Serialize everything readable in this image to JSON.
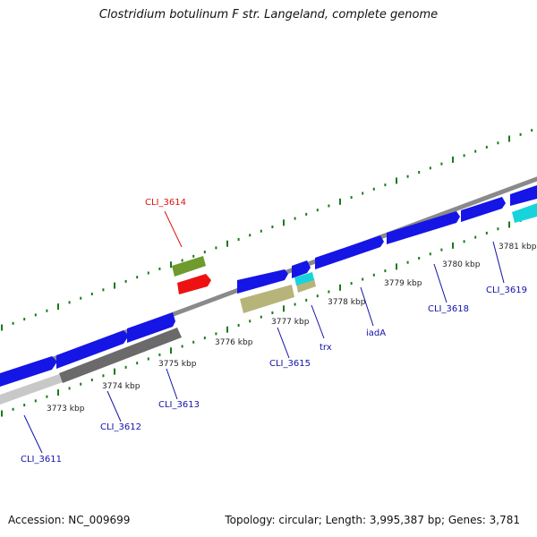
{
  "title": "Clostridium botulinum F str. Langeland, complete genome",
  "footer": {
    "accession": "Accession: NC_009699",
    "summary": "Topology: circular; Length: 3,995,387 bp; Genes: 3,781"
  },
  "colors": {
    "backbone": "#8a8a8a",
    "ticks": "#1a7a1a",
    "forward_cds": "#1515e6",
    "gray_gene_dark": "#6a6a6a",
    "gray_gene_light": "#c8c8c8",
    "olive_gene": "#b7b47a",
    "cyan_gene": "#17d4dc",
    "green_gene": "#6e9a2e",
    "red_gene": "#ee1111",
    "label_blue": "#1111aa",
    "label_red": "#dd1111"
  },
  "scale": {
    "labels": [
      "3773 kbp",
      "3774 kbp",
      "3775 kbp",
      "3776 kbp",
      "3777 kbp",
      "3778 kbp",
      "3779 kbp",
      "3780 kbp",
      "3781 kbp"
    ]
  },
  "gene_labels": [
    {
      "text": "CLI_3611",
      "color": "blue"
    },
    {
      "text": "CLI_3612",
      "color": "blue"
    },
    {
      "text": "CLI_3613",
      "color": "blue"
    },
    {
      "text": "CLI_3614",
      "color": "red"
    },
    {
      "text": "CLI_3615",
      "color": "blue"
    },
    {
      "text": "trx",
      "color": "blue"
    },
    {
      "text": "iadA",
      "color": "blue"
    },
    {
      "text": "CLI_3618",
      "color": "blue"
    },
    {
      "text": "CLI_3619",
      "color": "blue"
    }
  ]
}
